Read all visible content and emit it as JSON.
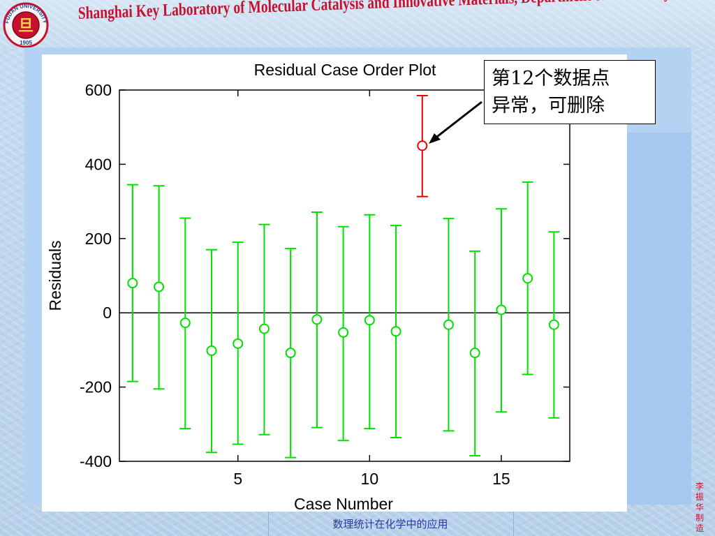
{
  "header": {
    "title": "Shanghai Key Laboratory of Molecular Catalysis and Innovative Materials, Department of Chemistry",
    "logo": {
      "top_text": "FUDAN UNIVERSITY",
      "year": "1905"
    }
  },
  "annotation": {
    "text": "第12个数据点\n异常，可删除"
  },
  "footer": {
    "text": "数理统计在化学中的应用"
  },
  "credit": {
    "text": "李振华制造"
  },
  "colors": {
    "normal": "#00e000",
    "outlier": "#ee0000",
    "title_red": "#c8102e"
  },
  "chart_data": {
    "type": "scatter",
    "title": "Residual Case Order Plot",
    "xlabel": "Case Number",
    "ylabel": "Residuals",
    "xlim": [
      0.5,
      17.6
    ],
    "ylim": [
      -400,
      600
    ],
    "xticks": [
      5,
      10,
      15
    ],
    "yticks": [
      -400,
      -200,
      0,
      200,
      400,
      600
    ],
    "points": [
      {
        "case": 1,
        "residual": 80,
        "lower": -185,
        "upper": 345,
        "outlier": false
      },
      {
        "case": 2,
        "residual": 70,
        "lower": -205,
        "upper": 342,
        "outlier": false
      },
      {
        "case": 3,
        "residual": -27,
        "lower": -312,
        "upper": 255,
        "outlier": false
      },
      {
        "case": 4,
        "residual": -102,
        "lower": -376,
        "upper": 170,
        "outlier": false
      },
      {
        "case": 5,
        "residual": -83,
        "lower": -354,
        "upper": 190,
        "outlier": false
      },
      {
        "case": 6,
        "residual": -43,
        "lower": -328,
        "upper": 238,
        "outlier": false
      },
      {
        "case": 7,
        "residual": -108,
        "lower": -390,
        "upper": 173,
        "outlier": false
      },
      {
        "case": 8,
        "residual": -18,
        "lower": -309,
        "upper": 271,
        "outlier": false
      },
      {
        "case": 9,
        "residual": -53,
        "lower": -344,
        "upper": 232,
        "outlier": false
      },
      {
        "case": 10,
        "residual": -20,
        "lower": -312,
        "upper": 264,
        "outlier": false
      },
      {
        "case": 11,
        "residual": -50,
        "lower": -336,
        "upper": 235,
        "outlier": false
      },
      {
        "case": 12,
        "residual": 450,
        "lower": 313,
        "upper": 585,
        "outlier": true
      },
      {
        "case": 13,
        "residual": -32,
        "lower": -318,
        "upper": 254,
        "outlier": false
      },
      {
        "case": 14,
        "residual": -108,
        "lower": -385,
        "upper": 166,
        "outlier": false
      },
      {
        "case": 15,
        "residual": 8,
        "lower": -267,
        "upper": 280,
        "outlier": false
      },
      {
        "case": 16,
        "residual": 93,
        "lower": -166,
        "upper": 352,
        "outlier": false
      },
      {
        "case": 17,
        "residual": -32,
        "lower": -283,
        "upper": 218,
        "outlier": false
      }
    ],
    "reference_line": 0,
    "grid": false,
    "annotation_target_case": 12
  }
}
